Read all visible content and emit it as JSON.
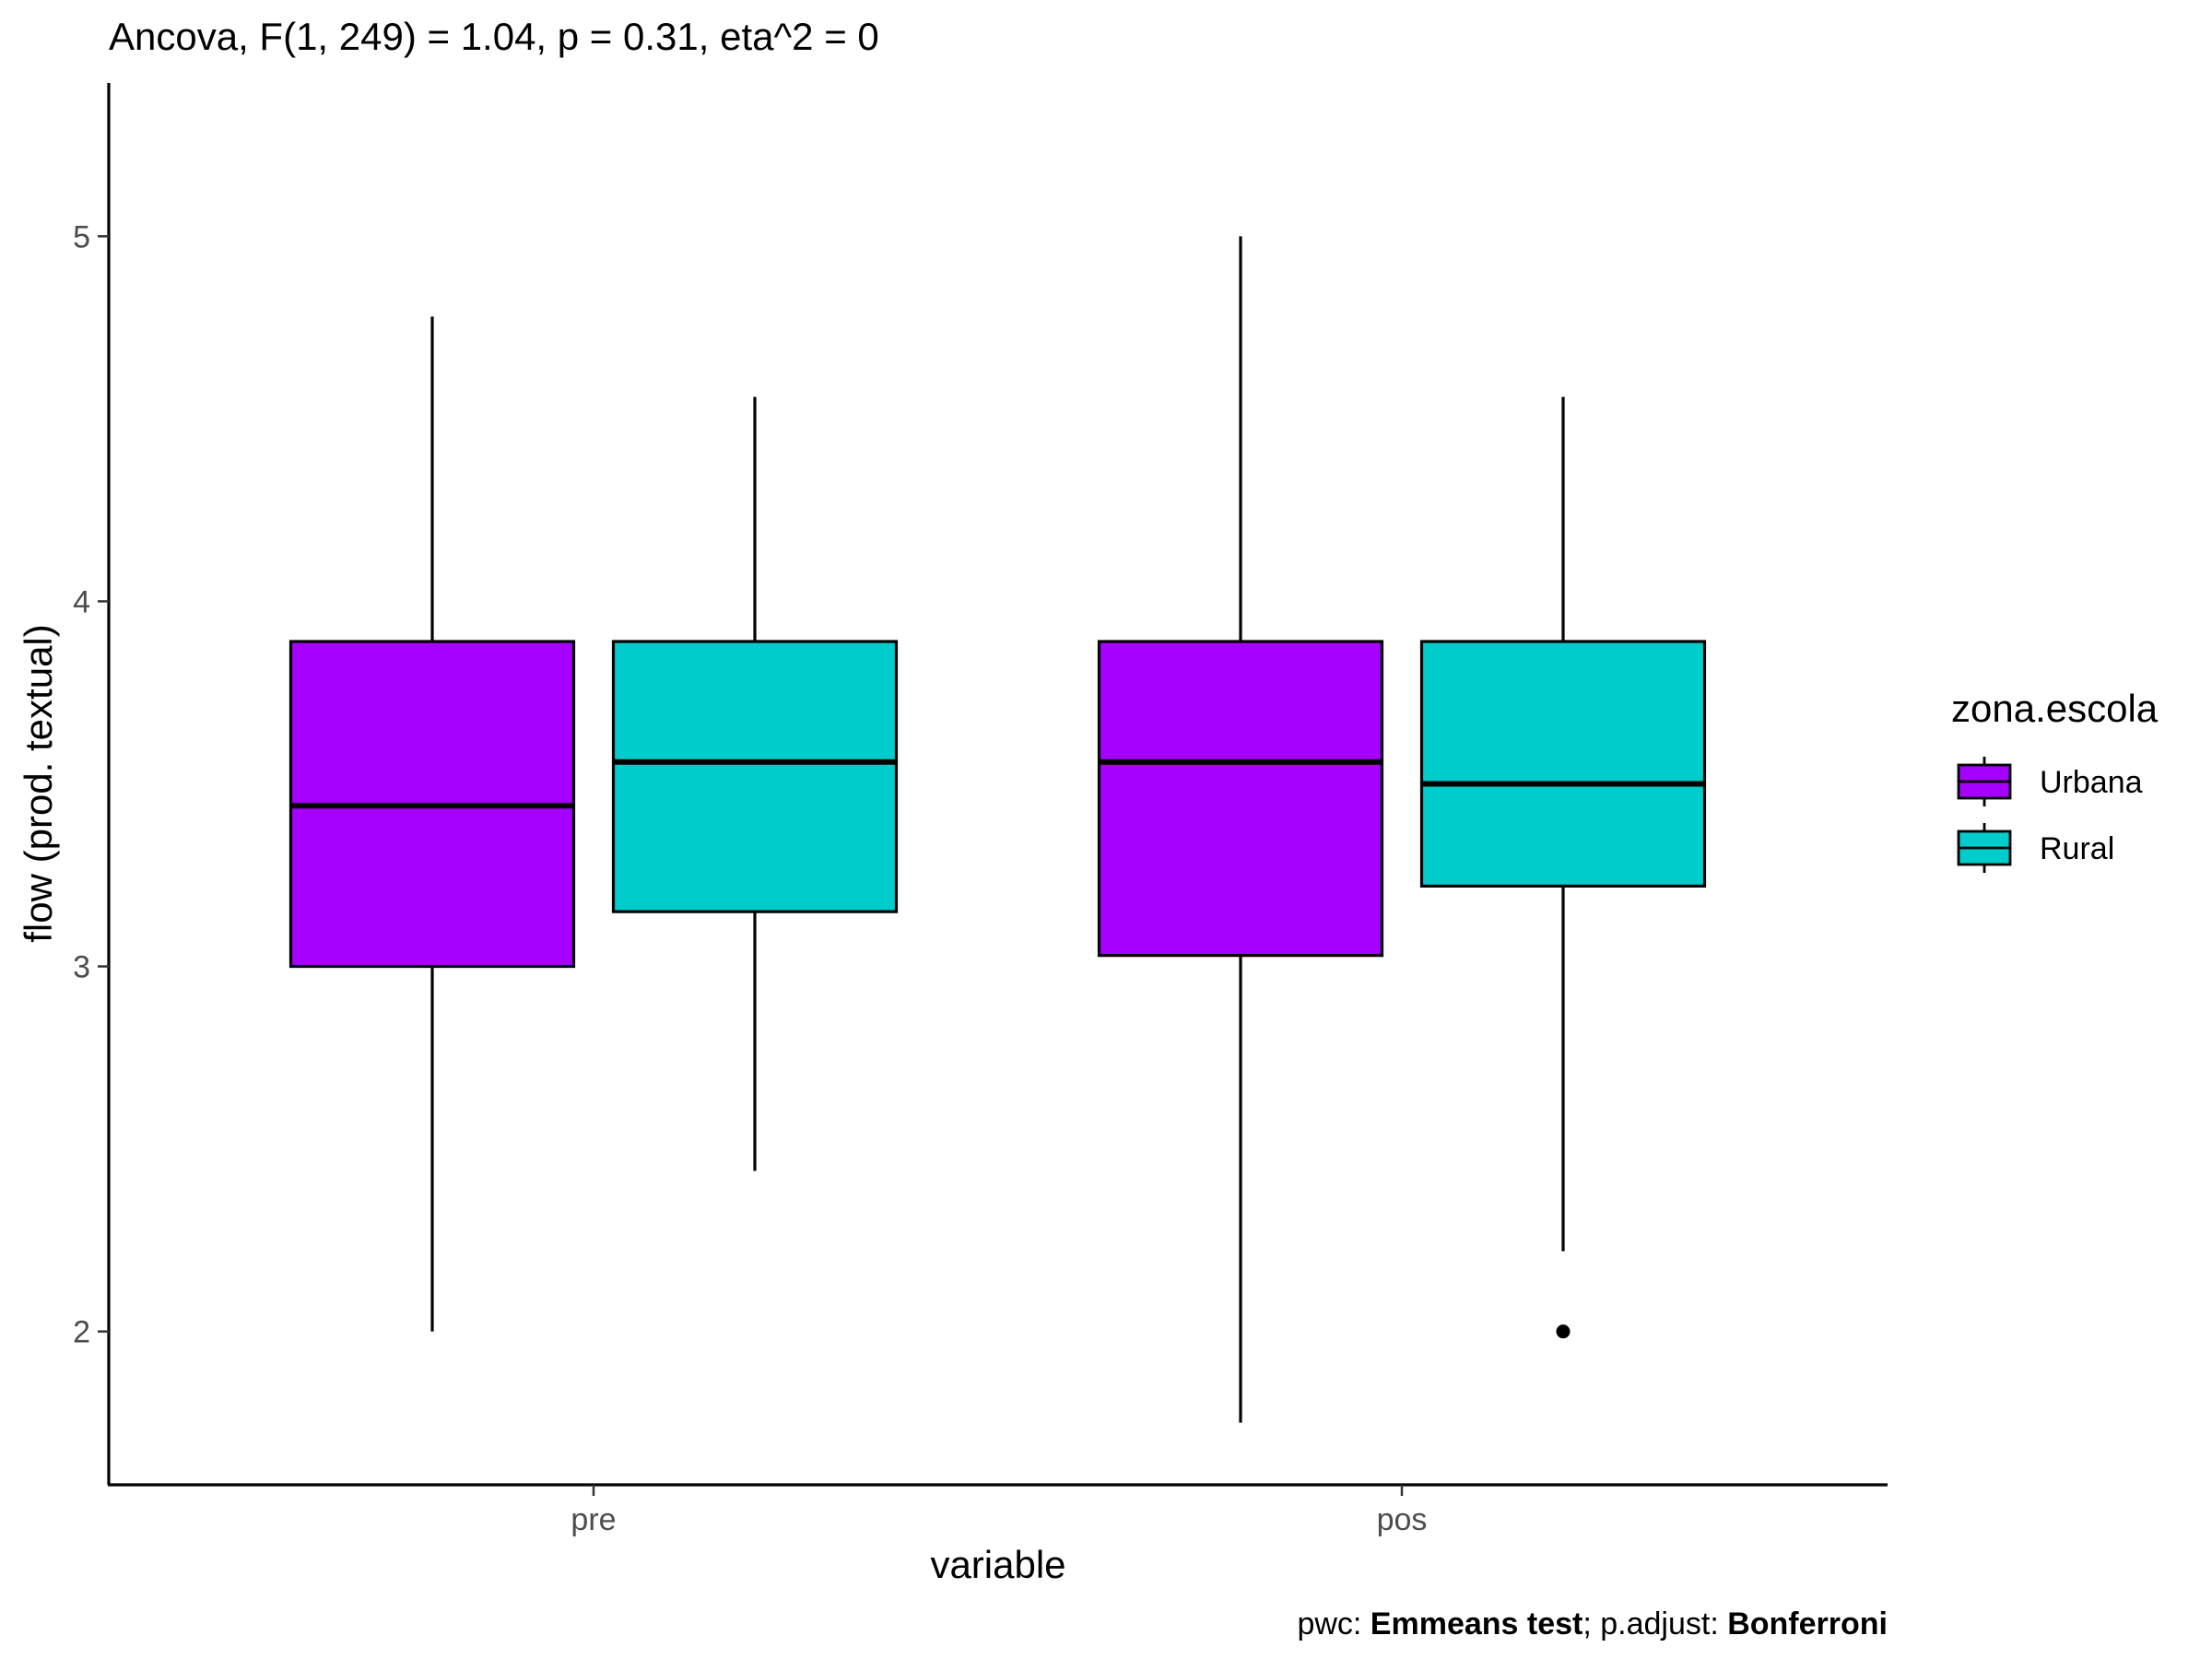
{
  "chart_data": {
    "type": "boxplot",
    "title": "Ancova, F(1, 249) = 1.04, p = 0.31, eta^2 = 0",
    "xlabel": "variable",
    "ylabel": "flow (prod. textual)",
    "categories": [
      "pre",
      "pos"
    ],
    "ylim": [
      1.58,
      5.42
    ],
    "yticks": [
      2,
      3,
      4,
      5
    ],
    "grid": false,
    "legend": {
      "title": "zona.escola",
      "placement": "right",
      "entries": [
        "Urbana",
        "Rural"
      ]
    },
    "series": [
      {
        "name": "Urbana",
        "color": "#A600FF",
        "boxes": [
          {
            "category": "pre",
            "min": 2.0,
            "q1": 3.0,
            "median": 3.44,
            "q3": 3.89,
            "max": 4.78,
            "outliers": []
          },
          {
            "category": "pos",
            "min": 1.75,
            "q1": 3.03,
            "median": 3.56,
            "q3": 3.89,
            "max": 5.0,
            "outliers": []
          }
        ]
      },
      {
        "name": "Rural",
        "color": "#00CCCC",
        "boxes": [
          {
            "category": "pre",
            "min": 2.44,
            "q1": 3.15,
            "median": 3.56,
            "q3": 3.89,
            "max": 4.56,
            "outliers": []
          },
          {
            "category": "pos",
            "min": 2.22,
            "q1": 3.22,
            "median": 3.5,
            "q3": 3.89,
            "max": 4.56,
            "outliers": [
              2.0
            ]
          }
        ]
      }
    ],
    "caption": {
      "parts": [
        {
          "text": "pwc: ",
          "bold": false
        },
        {
          "text": "Emmeans test",
          "bold": true
        },
        {
          "text": "; p.adjust: ",
          "bold": false
        },
        {
          "text": "Bonferroni",
          "bold": true
        }
      ]
    }
  }
}
